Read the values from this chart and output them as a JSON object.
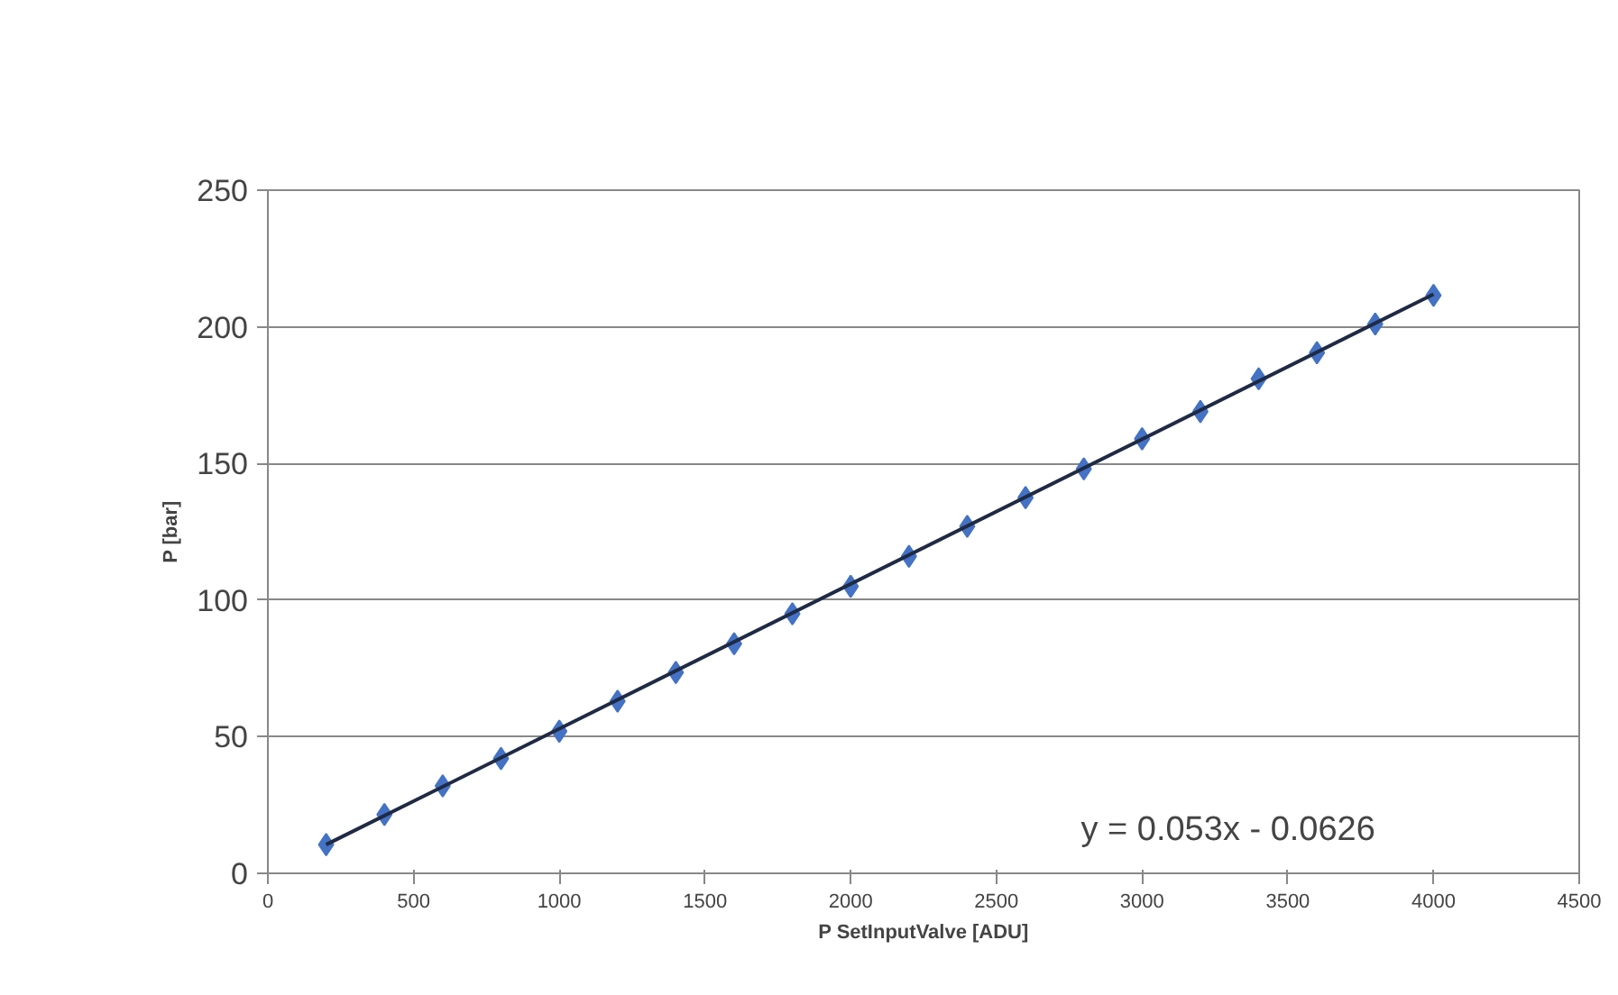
{
  "chart_data": {
    "type": "scatter",
    "xlabel": "P SetInputValve [ADU]",
    "ylabel": "P [bar]",
    "x": [
      200,
      400,
      600,
      800,
      1000,
      1200,
      1400,
      1600,
      1800,
      2000,
      2200,
      2400,
      2600,
      2800,
      3000,
      3200,
      3400,
      3600,
      3800,
      4000
    ],
    "series": [
      {
        "color": "#4472c4",
        "marker": "diamond",
        "values": [
          10.5,
          21.5,
          32,
          42,
          52,
          63,
          73.5,
          84,
          95,
          105,
          116,
          127,
          137.5,
          148,
          159,
          169,
          181,
          190.5,
          201,
          211.5
        ]
      },
      {
        "type": "line",
        "color": "#1f2a44",
        "marker": "none",
        "x": [
          200,
          4000
        ],
        "values": [
          10.5,
          211.9
        ]
      }
    ],
    "xlim": [
      0,
      4500
    ],
    "xticks": [
      0,
      500,
      1000,
      1500,
      2000,
      2500,
      3000,
      3500,
      4000,
      4500
    ],
    "ylim": [
      0,
      250
    ],
    "yticks": [
      0,
      50,
      100,
      150,
      200,
      250
    ],
    "grid": "y",
    "annotations": [
      "y = 0.053x - 0.0626"
    ]
  }
}
